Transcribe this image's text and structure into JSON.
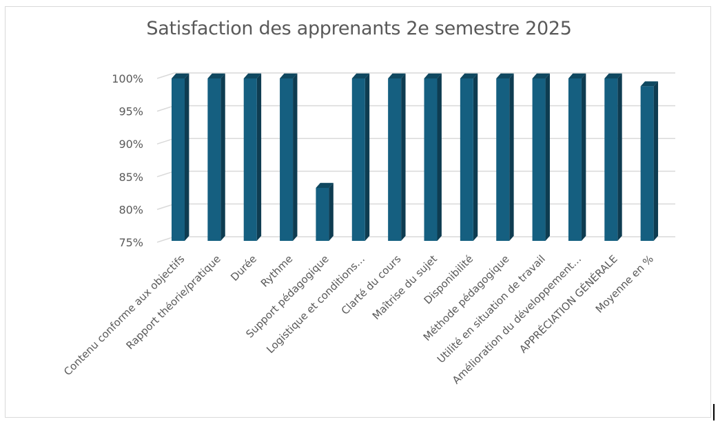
{
  "chart_data": {
    "type": "bar",
    "title": "Satisfaction des apprenants 2e semestre 2025",
    "xlabel": "",
    "ylabel": "",
    "ylim": [
      0.75,
      1.0
    ],
    "yticks": [
      0.75,
      0.8,
      0.85,
      0.9,
      0.95,
      1.0
    ],
    "ytick_labels": [
      "75%",
      "80%",
      "85%",
      "90%",
      "95%",
      "100%"
    ],
    "grid": true,
    "legend": "none",
    "style": "3d-column",
    "colors": {
      "bar_front": "#155F80",
      "bar_side": "#0E3C51",
      "bar_top": "#0F4860",
      "grid": "#d9d9d9",
      "text": "#595959"
    },
    "categories": [
      "Contenu conforme aux objectifs",
      "Rapport théorie/pratique",
      "Durée",
      "Rythme",
      "Support pédagogique",
      "Logistique et conditions…",
      "Clarté du cours",
      "Maîtrise du sujet",
      "Disponibilité",
      "Méthode pédagogique",
      "Utilité en situation de travail",
      "Amélioration du développement…",
      "APPRÉCIATION GÉNÉRALE",
      "Moyenne en %"
    ],
    "values": [
      1.0,
      1.0,
      1.0,
      1.0,
      0.833,
      1.0,
      1.0,
      1.0,
      1.0,
      1.0,
      1.0,
      1.0,
      1.0,
      0.988
    ]
  }
}
